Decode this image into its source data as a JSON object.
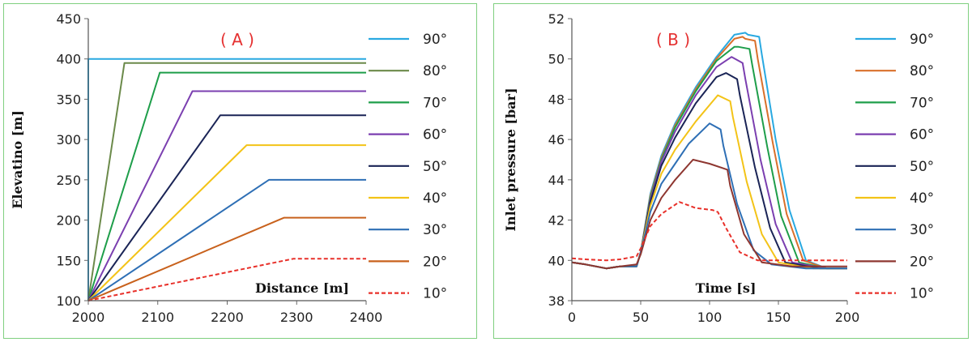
{
  "chart_data": [
    {
      "type": "line",
      "panel_label": "( A )",
      "xlabel": "Distance [m]",
      "ylabel": "Elevatino [m]",
      "xlim": [
        2000,
        2400
      ],
      "ylim": [
        100,
        450
      ],
      "xticks": [
        2000,
        2100,
        2200,
        2300,
        2400
      ],
      "yticks": [
        100,
        150,
        200,
        250,
        300,
        350,
        400,
        450
      ],
      "legend_position": "right",
      "series": [
        {
          "name": "90°",
          "color": "#29a9e1",
          "dash": false,
          "x": [
            2000,
            2000,
            2400
          ],
          "y": [
            100,
            400,
            400
          ]
        },
        {
          "name": "80°",
          "color": "#6b8a4a",
          "dash": false,
          "x": [
            2000,
            2052,
            2400
          ],
          "y": [
            100,
            395,
            395
          ]
        },
        {
          "name": "70°",
          "color": "#1e9e4a",
          "dash": false,
          "x": [
            2000,
            2103,
            2400
          ],
          "y": [
            100,
            383,
            383
          ]
        },
        {
          "name": "60°",
          "color": "#7b3fb0",
          "dash": false,
          "x": [
            2000,
            2150,
            2400
          ],
          "y": [
            100,
            360,
            360
          ]
        },
        {
          "name": "50°",
          "color": "#1a2456",
          "dash": false,
          "x": [
            2000,
            2190,
            2400
          ],
          "y": [
            100,
            330,
            330
          ]
        },
        {
          "name": "40°",
          "color": "#f3c317",
          "dash": false,
          "x": [
            2000,
            2228,
            2400
          ],
          "y": [
            100,
            293,
            293
          ]
        },
        {
          "name": "30°",
          "color": "#2e6fb5",
          "dash": false,
          "x": [
            2000,
            2260,
            2400
          ],
          "y": [
            100,
            250,
            250
          ]
        },
        {
          "name": "20°",
          "color": "#c8611c",
          "dash": false,
          "x": [
            2000,
            2282,
            2400
          ],
          "y": [
            100,
            203,
            203
          ]
        },
        {
          "name": "10°",
          "color": "#e8302a",
          "dash": true,
          "x": [
            2000,
            2295,
            2400
          ],
          "y": [
            100,
            152,
            152
          ]
        }
      ]
    },
    {
      "type": "line",
      "panel_label": "( B )",
      "xlabel": "Time  [s]",
      "ylabel": "Inlet pressure  [bar]",
      "xlim": [
        0,
        200
      ],
      "ylim": [
        38,
        52
      ],
      "xticks": [
        0,
        50,
        100,
        150,
        200
      ],
      "yticks": [
        38,
        40,
        42,
        44,
        46,
        48,
        50,
        52
      ],
      "legend_position": "right",
      "series": [
        {
          "name": "90°",
          "color": "#29a9e1",
          "dash": false,
          "x": [
            0,
            10,
            25,
            35,
            47,
            50,
            57,
            65,
            75,
            90,
            105,
            118,
            126,
            128,
            136,
            138,
            148,
            158,
            170,
            185,
            200
          ],
          "y": [
            39.9,
            39.8,
            39.6,
            39.7,
            39.7,
            40.4,
            43.3,
            45.2,
            46.8,
            48.6,
            50.1,
            51.2,
            51.3,
            51.2,
            51.1,
            50.2,
            46.0,
            42.5,
            40.0,
            39.6,
            39.6
          ]
        },
        {
          "name": "80°",
          "color": "#d9702b",
          "dash": false,
          "x": [
            0,
            10,
            25,
            35,
            47,
            50,
            57,
            65,
            75,
            90,
            105,
            118,
            124,
            126,
            133,
            135,
            146,
            156,
            168,
            185,
            200
          ],
          "y": [
            39.9,
            39.8,
            39.6,
            39.7,
            39.7,
            40.4,
            43.2,
            45.1,
            46.7,
            48.5,
            50.0,
            51.0,
            51.1,
            51.0,
            50.9,
            50.0,
            45.8,
            42.3,
            40.0,
            39.6,
            39.6
          ]
        },
        {
          "name": "70°",
          "color": "#1e9e4a",
          "dash": false,
          "x": [
            0,
            10,
            25,
            35,
            47,
            50,
            57,
            65,
            75,
            90,
            105,
            118,
            121,
            129,
            131,
            142,
            152,
            165,
            185,
            200
          ],
          "y": [
            39.9,
            39.8,
            39.6,
            39.7,
            39.7,
            40.4,
            43.1,
            45.0,
            46.6,
            48.4,
            49.9,
            50.6,
            50.6,
            50.5,
            49.7,
            45.6,
            42.2,
            39.9,
            39.6,
            39.6
          ]
        },
        {
          "name": "60°",
          "color": "#7b3fb0",
          "dash": false,
          "x": [
            0,
            10,
            25,
            35,
            47,
            50,
            57,
            65,
            75,
            90,
            105,
            116,
            124,
            126,
            137,
            148,
            160,
            185,
            200
          ],
          "y": [
            39.9,
            39.8,
            39.6,
            39.7,
            39.7,
            40.4,
            43.0,
            44.9,
            46.4,
            48.2,
            49.6,
            50.1,
            49.8,
            49.0,
            45.0,
            41.8,
            39.9,
            39.6,
            39.6
          ]
        },
        {
          "name": "50°",
          "color": "#1a2456",
          "dash": false,
          "x": [
            0,
            10,
            25,
            35,
            47,
            50,
            57,
            65,
            75,
            90,
            105,
            112,
            120,
            122,
            133,
            144,
            155,
            180,
            200
          ],
          "y": [
            39.9,
            39.8,
            39.6,
            39.7,
            39.7,
            40.4,
            42.9,
            44.7,
            46.1,
            47.8,
            49.1,
            49.3,
            49.0,
            48.2,
            44.6,
            41.6,
            39.9,
            39.6,
            39.6
          ]
        },
        {
          "name": "40°",
          "color": "#f3c317",
          "dash": false,
          "x": [
            0,
            10,
            25,
            35,
            47,
            50,
            57,
            65,
            75,
            90,
            106,
            115,
            117,
            127,
            138,
            150,
            175,
            200
          ],
          "y": [
            39.9,
            39.8,
            39.6,
            39.7,
            39.7,
            40.4,
            42.7,
            44.3,
            45.5,
            46.9,
            48.2,
            47.9,
            47.1,
            43.9,
            41.3,
            39.9,
            39.6,
            39.6
          ]
        },
        {
          "name": "30°",
          "color": "#2e6fb5",
          "dash": false,
          "x": [
            0,
            10,
            25,
            35,
            47,
            50,
            57,
            65,
            75,
            85,
            100,
            108,
            110,
            120,
            132,
            145,
            170,
            200
          ],
          "y": [
            39.9,
            39.8,
            39.6,
            39.7,
            39.7,
            40.4,
            42.4,
            43.8,
            44.8,
            45.8,
            46.8,
            46.5,
            45.7,
            42.8,
            40.5,
            39.8,
            39.6,
            39.6
          ]
        },
        {
          "name": "20°",
          "color": "#8e3630",
          "dash": false,
          "x": [
            0,
            10,
            25,
            35,
            47,
            50,
            57,
            65,
            75,
            88,
            100,
            113,
            115,
            125,
            138,
            160,
            200
          ],
          "y": [
            39.9,
            39.8,
            39.6,
            39.7,
            39.8,
            40.3,
            42.0,
            43.1,
            44.0,
            45.0,
            44.8,
            44.5,
            43.7,
            41.3,
            39.9,
            39.7,
            39.7
          ]
        },
        {
          "name": "10°",
          "color": "#e8302a",
          "dash": true,
          "x": [
            0,
            10,
            25,
            35,
            47,
            50,
            57,
            65,
            78,
            90,
            102,
            106,
            112,
            122,
            135,
            150,
            200
          ],
          "y": [
            40.1,
            40.05,
            40.0,
            40.05,
            40.2,
            40.6,
            41.7,
            42.3,
            42.9,
            42.6,
            42.5,
            42.4,
            41.6,
            40.4,
            40.0,
            40.0,
            40.0
          ]
        }
      ]
    }
  ]
}
